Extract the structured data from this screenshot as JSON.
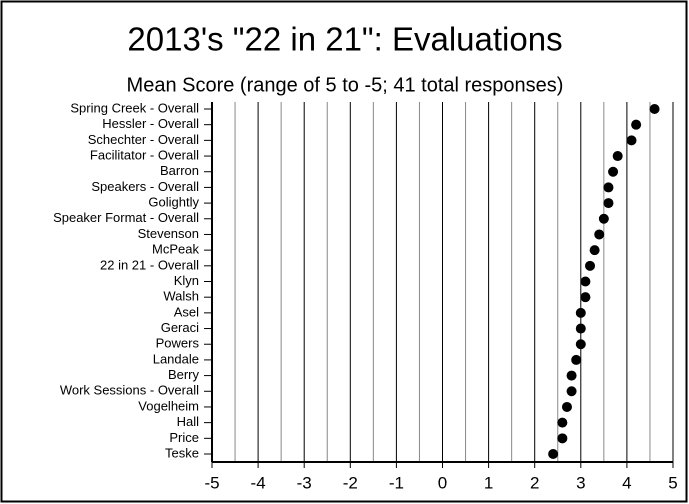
{
  "chart_data": {
    "type": "dot",
    "title": "2013's \"22 in 21\": Evaluations",
    "subtitle": "Mean Score (range of 5 to -5; 41 total responses)",
    "categories": [
      "Spring Creek - Overall",
      "Hessler - Overall",
      "Schechter - Overall",
      "Facilitator - Overall",
      "Barron",
      "Speakers - Overall",
      "Golightly",
      "Speaker Format - Overall",
      "Stevenson",
      "McPeak",
      "22 in 21 - Overall",
      "Klyn",
      "Walsh",
      "Asel",
      "Geraci",
      "Powers",
      "Landale",
      "Berry",
      "Work Sessions - Overall",
      "Vogelheim",
      "Hall",
      "Price",
      "Teske"
    ],
    "values": [
      4.6,
      4.2,
      4.1,
      3.8,
      3.7,
      3.6,
      3.6,
      3.5,
      3.4,
      3.3,
      3.2,
      3.1,
      3.1,
      3.0,
      3.0,
      3.0,
      2.9,
      2.8,
      2.8,
      2.7,
      2.6,
      2.6,
      2.4
    ],
    "color": "#000000",
    "xlim": [
      -5,
      5
    ],
    "xticks": [
      -5,
      -4,
      -3,
      -2,
      -1,
      0,
      1,
      2,
      3,
      4,
      5
    ],
    "xticks_minor": [
      -4.5,
      -3.5,
      -2.5,
      -1.5,
      -0.5,
      0.5,
      1.5,
      2.5,
      3.5,
      4.5
    ],
    "grid": true
  }
}
